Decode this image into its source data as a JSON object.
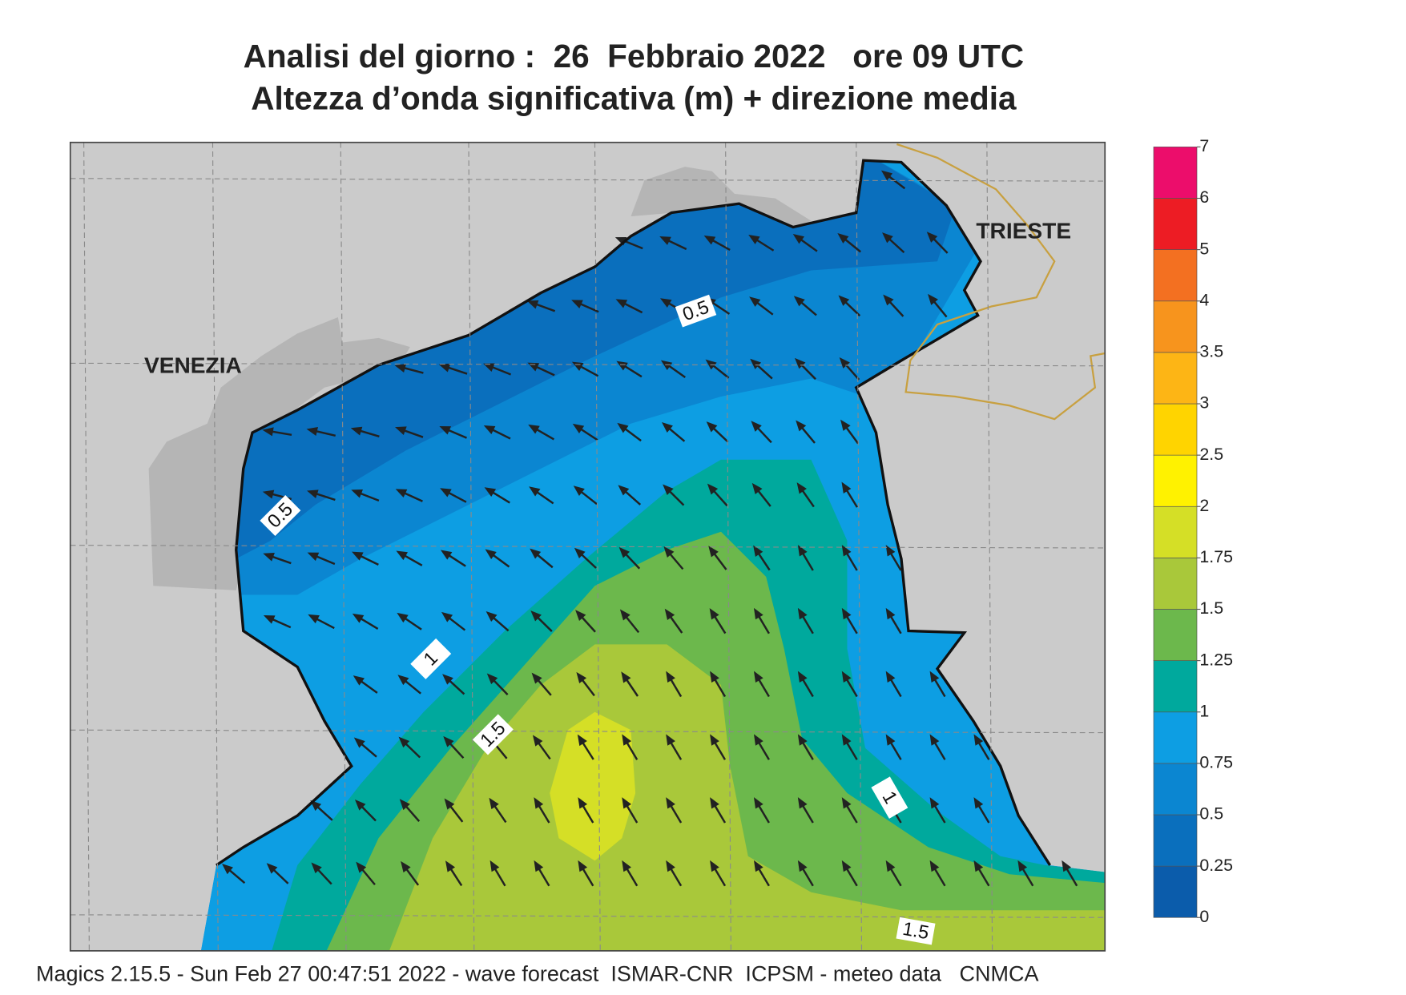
{
  "title": [
    "Analisi del giorno :  26  Febbraio 2022   ore 09 UTC",
    "Altezza d’onda significativa (m) + direzione media"
  ],
  "cities": [
    "VENEZIA",
    "TRIESTE"
  ],
  "contour_labels": [
    0.5,
    0.5,
    1,
    1.5,
    1,
    1.5
  ],
  "colorbar": {
    "levels": [
      0,
      0.25,
      0.5,
      0.75,
      1,
      1.25,
      1.5,
      1.75,
      2,
      2.5,
      3,
      3.5,
      4,
      5,
      6,
      7
    ],
    "colors": [
      "#0b5cab",
      "#0a6fbd",
      "#0b86d1",
      "#0d9ee3",
      "#00a99d",
      "#6cb84c",
      "#a9c83a",
      "#d5df26",
      "#fff200",
      "#ffd400",
      "#fdb515",
      "#f7941d",
      "#f37021",
      "#ed1c24",
      "#ec0d6b"
    ]
  },
  "footer": "Magics 2.15.5 - Sun Feb 27 00:47:51 2022 - wave forecast  ISMAR-CNR  ICPSM - meteo data   CNMCA"
}
